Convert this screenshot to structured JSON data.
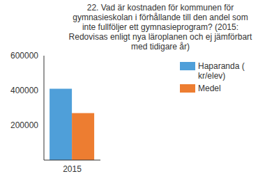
{
  "chart_data": {
    "type": "bar",
    "title": "22. Vad är kostnaden för kommunen för gymnasieskolan i förhållande till den andel som inte fullföljer ett gymnasieprogram? (2015: Redovisas enligt nya läroplanen och ej jämförbart med tidigare år)",
    "categories": [
      "2015"
    ],
    "series": [
      {
        "name": "Haparanda ( kr/elev)",
        "color": "#4f9fd9",
        "values": [
          410000
        ]
      },
      {
        "name": "Medel",
        "color": "#ed7d31",
        "values": [
          270000
        ]
      }
    ],
    "ylim": [
      0,
      600000
    ],
    "yticks": [
      200000,
      400000,
      600000
    ],
    "grid": false,
    "legend": "right"
  }
}
